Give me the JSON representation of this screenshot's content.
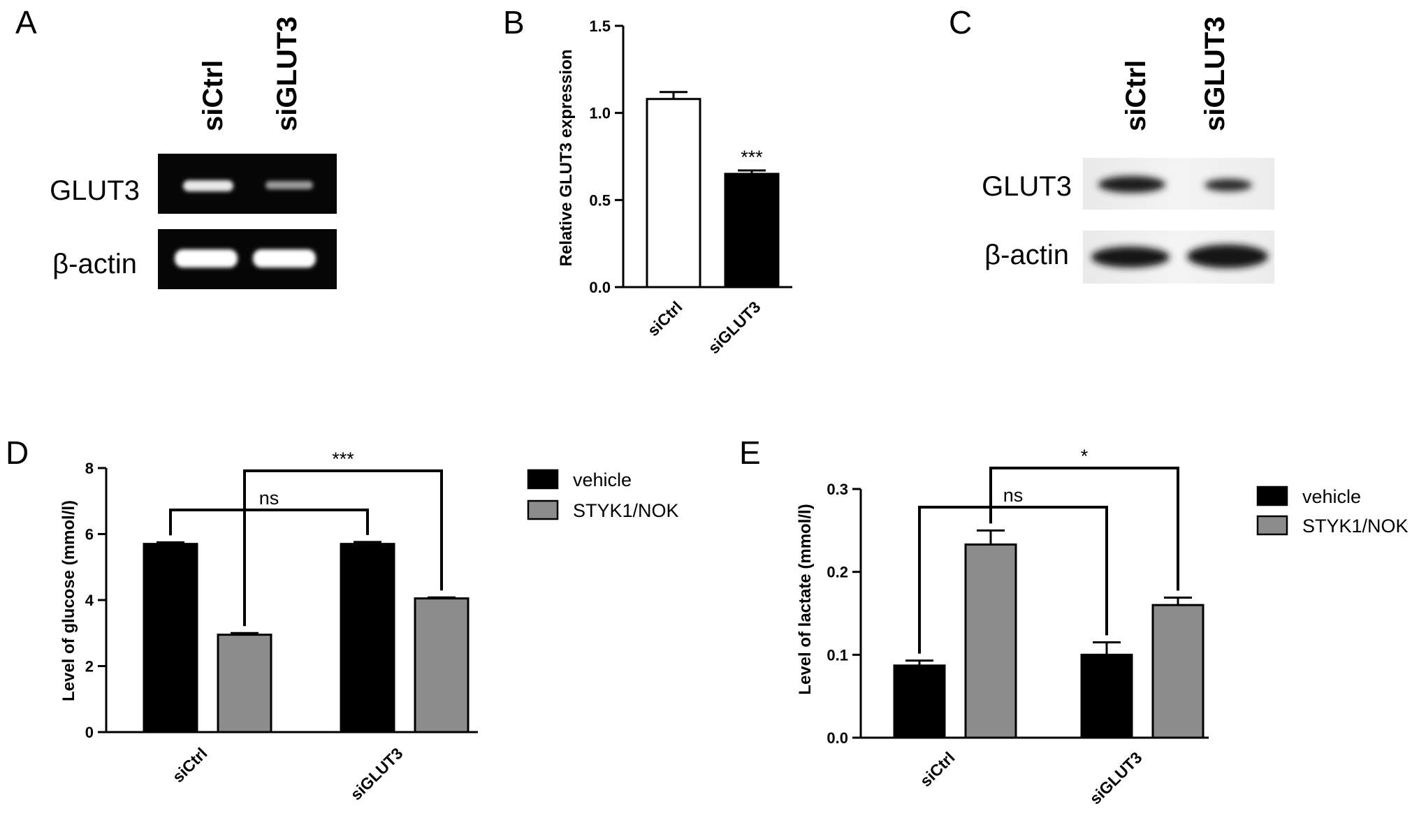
{
  "panels": {
    "A": {
      "letter": "A",
      "lanes": [
        "siCtrl",
        "siGLUT3"
      ],
      "rows": [
        "GLUT3",
        "β-actin"
      ]
    },
    "C": {
      "letter": "C",
      "lanes": [
        "siCtrl",
        "siGLUT3"
      ],
      "rows": [
        "GLUT3",
        "β-actin"
      ]
    }
  },
  "chart_data": [
    {
      "id": "B",
      "letter": "B",
      "type": "bar",
      "categories": [
        "siCtrl",
        "siGLUT3"
      ],
      "series": [
        {
          "values": [
            1.08,
            0.65
          ],
          "errors": [
            0.04,
            0.02
          ],
          "colors": [
            "#ffffff",
            "#000000"
          ]
        }
      ],
      "ylabel": "Relative GLUT3 expression",
      "ylim": [
        0,
        1.5
      ],
      "yticks": [
        "0.0",
        "0.5",
        "1.0",
        "1.5"
      ],
      "annotations": [
        {
          "category": 1,
          "text": "***"
        }
      ],
      "grid": false
    },
    {
      "id": "D",
      "letter": "D",
      "type": "bar",
      "categories": [
        "siCtrl",
        "siGLUT3"
      ],
      "series": [
        {
          "name": "vehicle",
          "color": "#000000",
          "values": [
            5.7,
            5.7
          ],
          "errors": [
            0.05,
            0.06
          ]
        },
        {
          "name": "STYK1/NOK",
          "color": "#8c8c8c",
          "values": [
            2.95,
            4.05
          ],
          "errors": [
            0.05,
            0.03
          ]
        }
      ],
      "ylabel": "Level of glucose (mmol/l)",
      "ylim": [
        0,
        8
      ],
      "yticks": [
        "0",
        "2",
        "4",
        "6",
        "8"
      ],
      "comparisons": [
        {
          "from": [
            0,
            0
          ],
          "to": [
            1,
            0
          ],
          "label": "ns"
        },
        {
          "from": [
            0,
            1
          ],
          "to": [
            1,
            1
          ],
          "label": "***"
        }
      ],
      "legend": "right",
      "grid": false
    },
    {
      "id": "E",
      "letter": "E",
      "type": "bar",
      "categories": [
        "siCtrl",
        "siGLUT3"
      ],
      "series": [
        {
          "name": "vehicle",
          "color": "#000000",
          "values": [
            0.087,
            0.1
          ],
          "errors": [
            0.006,
            0.015
          ]
        },
        {
          "name": "STYK1/NOK",
          "color": "#8c8c8c",
          "values": [
            0.233,
            0.16
          ],
          "errors": [
            0.017,
            0.009
          ]
        }
      ],
      "ylabel": "Level of lactate (mmol/l)",
      "ylim": [
        0,
        0.3
      ],
      "yticks": [
        "0.0",
        "0.1",
        "0.2",
        "0.3"
      ],
      "comparisons": [
        {
          "from": [
            0,
            0
          ],
          "to": [
            1,
            0
          ],
          "label": "ns"
        },
        {
          "from": [
            0,
            1
          ],
          "to": [
            1,
            1
          ],
          "label": "*"
        }
      ],
      "legend": "right",
      "grid": false
    }
  ]
}
